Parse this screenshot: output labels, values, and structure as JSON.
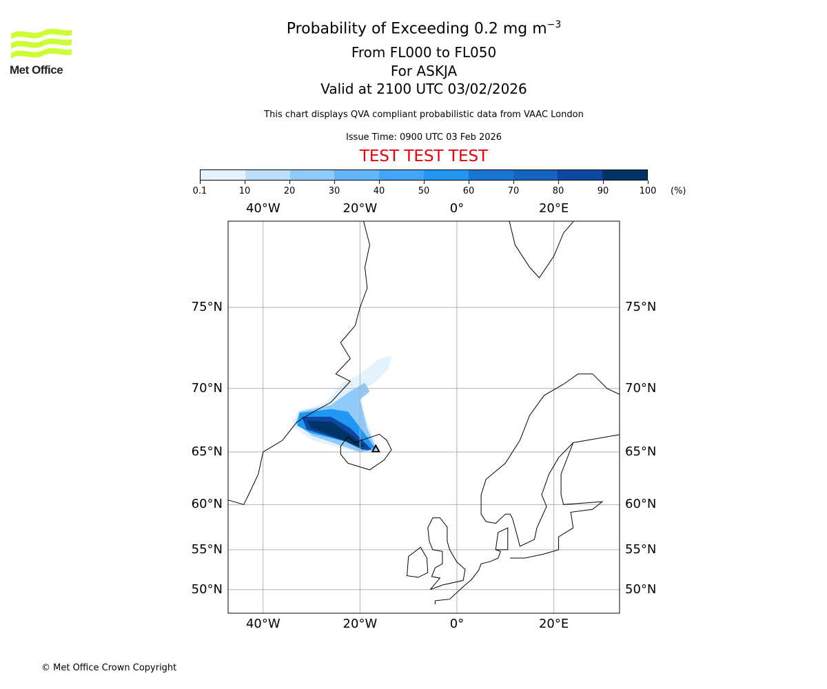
{
  "logo": {
    "text": "Met Office",
    "color": "#ccff33"
  },
  "title": {
    "line1": "Probability of Exceeding 0.2 mg m",
    "line1_sup": "−3",
    "line2": "From FL000 to FL050",
    "line3": "For ASKJA",
    "line4": "Valid at 2100 UTC 03/02/2026",
    "subtitle": "This chart displays QVA compliant probabilistic data from VAAC London",
    "issue_time": "Issue Time: 0900 UTC 03 Feb 2026",
    "test_banner": "TEST TEST TEST"
  },
  "colorbar": {
    "ticks": [
      "0.1",
      "10",
      "20",
      "30",
      "40",
      "50",
      "60",
      "70",
      "80",
      "90",
      "100"
    ],
    "unit": "(%)",
    "colors": [
      "#e3f2fd",
      "#bbdefb",
      "#90caf9",
      "#64b5f6",
      "#42a5f5",
      "#2196f3",
      "#1976d2",
      "#1565c0",
      "#0d47a1",
      "#003366"
    ]
  },
  "map": {
    "lon_labels": [
      "40°W",
      "20°W",
      "0°",
      "20°E"
    ],
    "lon_values": [
      -40,
      -20,
      0,
      20
    ],
    "lat_labels": [
      "75°N",
      "70°N",
      "65°N",
      "60°N",
      "55°N",
      "50°N"
    ],
    "lat_values": [
      75,
      70,
      65,
      60,
      55,
      50
    ],
    "extent": {
      "lon": [
        -47.2,
        33.4
      ],
      "lat": [
        48.1,
        79
      ]
    },
    "volcano": {
      "name": "ASKJA",
      "lon": -16.75,
      "lat": 65.03
    }
  },
  "footer": {
    "copyright": "© Met Office Crown Copyright"
  }
}
